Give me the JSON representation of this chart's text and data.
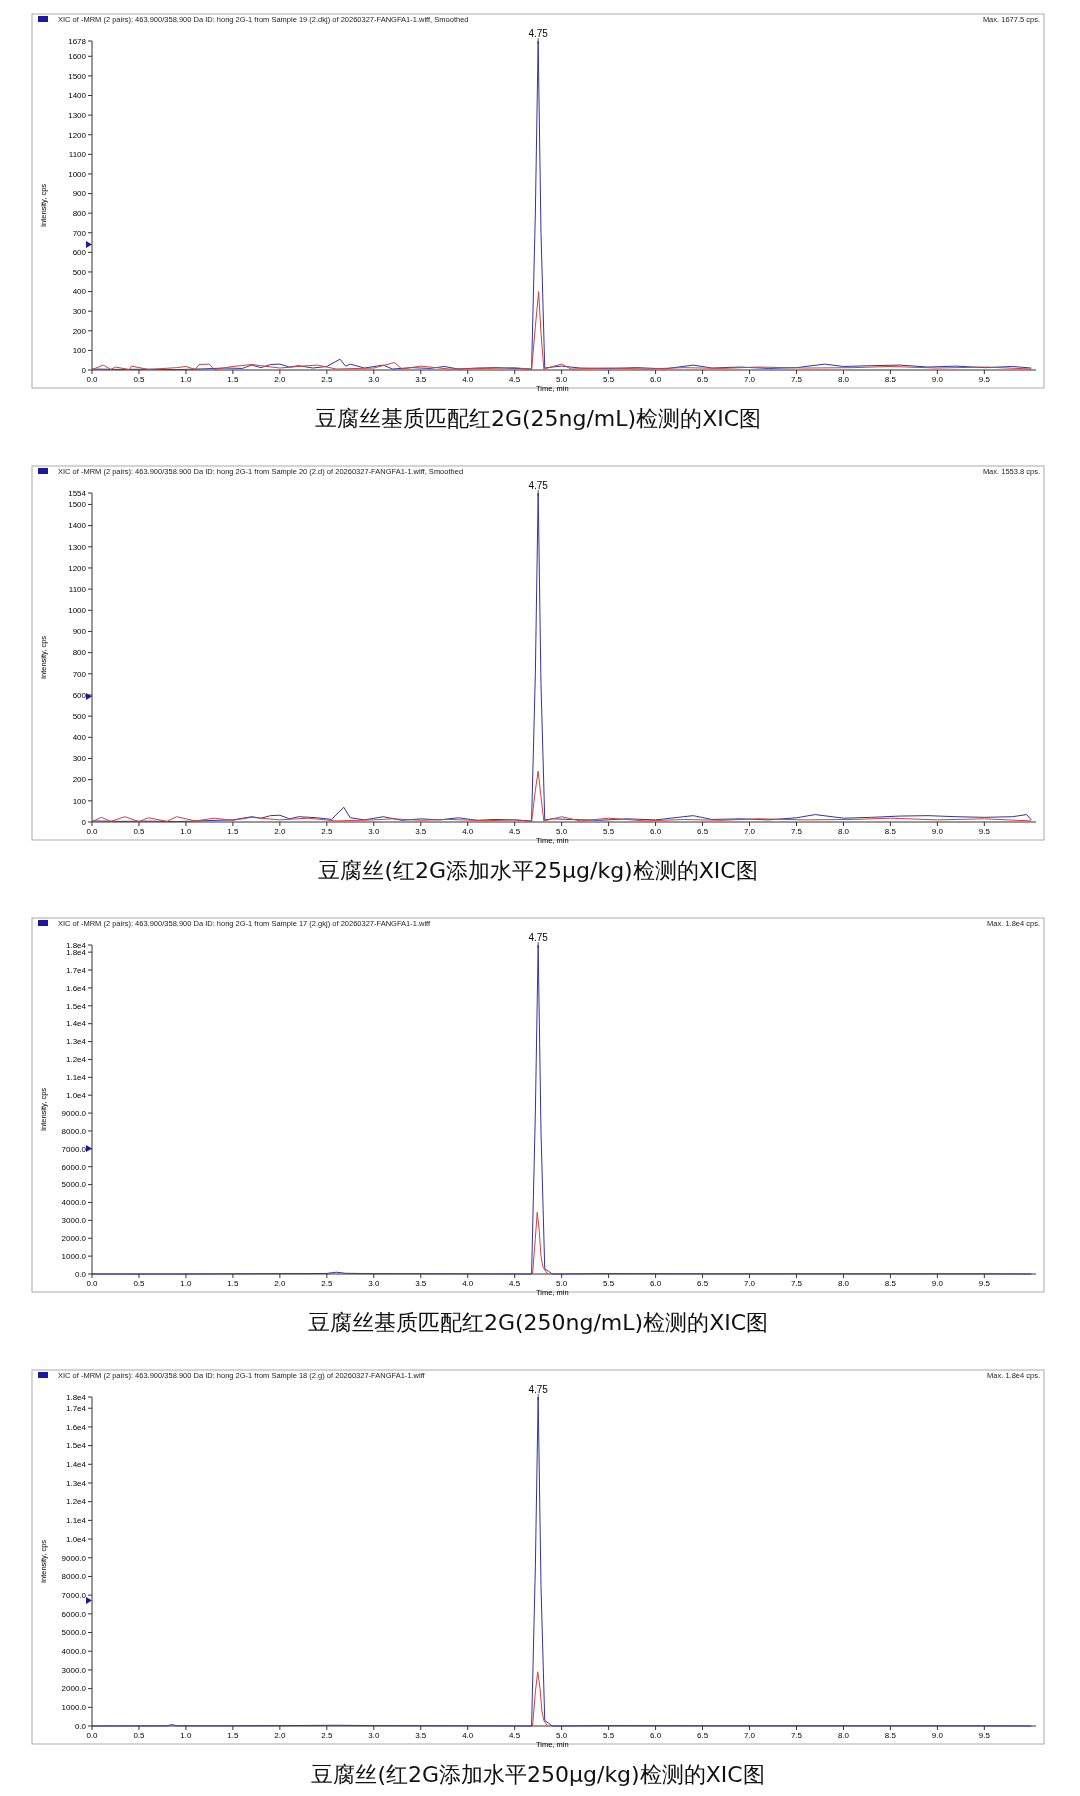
{
  "chart_data": [
    {
      "type": "line",
      "title": "豆腐丝基质匹配红2G(25ng/mL)检测的XIC图",
      "xlabel": "Time, min",
      "ylabel": "Intensity, cps",
      "annotations": [
        "XIC of -MRM (2 pairs): 463.900/358.900 Da ID: hong 2G-1 from Sample 19 (2.dkj) of 20260327-FANGFA1-1.wiff, Smoothed",
        "Max. 1677.5 cps.",
        "4.75"
      ],
      "xlim": [
        0,
        10.05
      ],
      "xticks": [
        {
          "value": 0,
          "label": "0.0"
        },
        0.5,
        {
          "value": 1,
          "label": "1.0"
        },
        1.5,
        {
          "value": 2,
          "label": "2.0"
        },
        2.5,
        {
          "value": 3,
          "label": "3.0"
        },
        3.5,
        {
          "value": 4,
          "label": "4.0"
        },
        4.5,
        {
          "value": 5,
          "label": "5.0"
        },
        5.5,
        {
          "value": 6,
          "label": "6.0"
        },
        6.5,
        {
          "value": 7,
          "label": "7.0"
        },
        7.5,
        {
          "value": 8,
          "label": "8.0"
        },
        8.5,
        {
          "value": 9,
          "label": "9.0"
        },
        9.5
      ],
      "ylim": [
        0,
        1678
      ],
      "yticks": [
        0,
        100,
        200,
        300,
        400,
        500,
        600,
        700,
        800,
        900,
        1000,
        1100,
        1200,
        1300,
        1400,
        1500,
        1600,
        1678
      ],
      "series": [
        {
          "color": "#3333a0",
          "x": [
            0,
            0.3,
            0.6,
            0.9,
            1.2,
            1.4,
            1.6,
            1.7,
            1.8,
            1.9,
            2.0,
            2.1,
            2.2,
            2.35,
            2.5,
            2.64,
            2.7,
            2.75,
            2.9,
            3.1,
            3.2,
            3.4,
            3.6,
            3.75,
            3.9,
            4.1,
            4.3,
            4.5,
            4.68,
            4.72,
            4.75,
            4.78,
            4.82,
            4.9,
            5.0,
            5.2,
            5.5,
            5.8,
            6.1,
            6.4,
            6.6,
            6.9,
            7.2,
            7.5,
            7.8,
            8.0,
            8.3,
            8.6,
            8.9,
            9.2,
            9.5,
            9.8,
            10.0
          ],
          "values": [
            5,
            3,
            4,
            2,
            6,
            10,
            8,
            25,
            12,
            28,
            30,
            15,
            22,
            10,
            18,
            55,
            20,
            30,
            10,
            25,
            5,
            12,
            8,
            18,
            5,
            10,
            12,
            8,
            5,
            800,
            1678,
            700,
            10,
            15,
            20,
            10,
            8,
            12,
            6,
            25,
            10,
            15,
            8,
            12,
            30,
            18,
            22,
            25,
            15,
            20,
            12,
            18,
            10
          ]
        },
        {
          "color": "#d04040",
          "x": [
            0,
            0.12,
            0.2,
            0.25,
            0.4,
            0.42,
            0.6,
            0.9,
            1.0,
            1.1,
            1.14,
            1.25,
            1.3,
            1.5,
            1.7,
            2.0,
            2.3,
            2.4,
            2.6,
            3.0,
            3.22,
            3.3,
            3.5,
            3.8,
            4.2,
            4.5,
            4.68,
            4.72,
            4.755,
            4.78,
            4.81,
            5.0,
            5.1,
            5.5,
            5.9,
            6.3,
            6.7,
            7.1,
            7.6,
            8.1,
            8.5,
            9.0,
            9.5,
            10.0
          ],
          "values": [
            2,
            25,
            3,
            15,
            2,
            20,
            3,
            12,
            18,
            3,
            28,
            30,
            2,
            18,
            28,
            10,
            22,
            25,
            5,
            10,
            38,
            5,
            20,
            5,
            8,
            12,
            3,
            220,
            400,
            190,
            5,
            30,
            5,
            10,
            5,
            12,
            8,
            15,
            10,
            12,
            18,
            10,
            15,
            5
          ]
        }
      ]
    },
    {
      "type": "line",
      "title": "豆腐丝(红2G添加水平25μg/kg)检测的XIC图",
      "xlabel": "Time, min",
      "ylabel": "Intensity, cps",
      "annotations": [
        "XIC of -MRM (2 pairs): 463.900/358.900 Da ID: hong 2G-1 from Sample 20 (2.d) of 20260327-FANGFA1-1.wiff, Smoothed",
        "Max. 1553.8 cps.",
        "4.75"
      ],
      "xlim": [
        0,
        10.05
      ],
      "xticks": [
        {
          "value": 0,
          "label": "0.0"
        },
        0.5,
        {
          "value": 1,
          "label": "1.0"
        },
        1.5,
        {
          "value": 2,
          "label": "2.0"
        },
        2.5,
        {
          "value": 3,
          "label": "3.0"
        },
        3.5,
        {
          "value": 4,
          "label": "4.0"
        },
        4.5,
        {
          "value": 5,
          "label": "5.0"
        },
        5.5,
        {
          "value": 6,
          "label": "6.0"
        },
        6.5,
        {
          "value": 7,
          "label": "7.0"
        },
        7.5,
        {
          "value": 8,
          "label": "8.0"
        },
        8.5,
        {
          "value": 9,
          "label": "9.0"
        },
        9.5
      ],
      "ylim": [
        0,
        1554
      ],
      "yticks": [
        0,
        100,
        200,
        300,
        400,
        500,
        600,
        700,
        800,
        900,
        1000,
        1100,
        1200,
        1300,
        1400,
        1500,
        1554
      ],
      "series": [
        {
          "color": "#3333a0",
          "x": [
            0,
            0.3,
            0.6,
            0.9,
            1.2,
            1.5,
            1.7,
            1.8,
            1.9,
            2.0,
            2.1,
            2.2,
            2.4,
            2.55,
            2.68,
            2.75,
            2.9,
            3.1,
            3.3,
            3.5,
            3.7,
            3.9,
            4.1,
            4.3,
            4.5,
            4.68,
            4.72,
            4.75,
            4.78,
            4.82,
            4.9,
            5.1,
            5.4,
            5.7,
            6.0,
            6.4,
            6.6,
            6.9,
            7.2,
            7.5,
            7.7,
            8.0,
            8.3,
            8.6,
            8.9,
            9.2,
            9.5,
            9.8,
            9.95,
            10.0
          ],
          "values": [
            5,
            3,
            4,
            2,
            6,
            10,
            25,
            18,
            30,
            32,
            15,
            25,
            20,
            12,
            70,
            20,
            10,
            25,
            8,
            15,
            10,
            20,
            8,
            12,
            10,
            5,
            700,
            1554,
            650,
            10,
            15,
            12,
            8,
            15,
            10,
            30,
            12,
            15,
            10,
            20,
            35,
            18,
            22,
            28,
            30,
            25,
            22,
            25,
            35,
            10
          ]
        },
        {
          "color": "#d04040",
          "x": [
            0,
            0.1,
            0.2,
            0.35,
            0.5,
            0.6,
            0.8,
            0.9,
            1.1,
            1.3,
            1.5,
            1.7,
            2.0,
            2.3,
            2.6,
            3.0,
            3.2,
            3.5,
            3.8,
            4.2,
            4.5,
            4.68,
            4.72,
            4.75,
            4.78,
            4.81,
            5.0,
            5.2,
            5.5,
            5.9,
            6.3,
            6.7,
            7.1,
            7.6,
            8.1,
            8.5,
            9.0,
            9.5,
            10.0
          ],
          "values": [
            2,
            22,
            3,
            25,
            2,
            20,
            3,
            25,
            5,
            18,
            8,
            22,
            10,
            18,
            5,
            10,
            15,
            8,
            12,
            6,
            10,
            3,
            150,
            240,
            120,
            5,
            25,
            5,
            18,
            5,
            12,
            8,
            15,
            10,
            12,
            18,
            10,
            15,
            5
          ]
        }
      ]
    },
    {
      "type": "line",
      "title": "豆腐丝基质匹配红2G(250ng/mL)检测的XIC图",
      "xlabel": "Time, min",
      "ylabel": "Intensity, cps",
      "annotations": [
        "XIC of -MRM (2 pairs): 463.900/358.900 Da ID: hong 2G-1 from Sample 17 (2.gkj) of 20260327-FANGFA1-1.wiff",
        "Max. 1.8e4 cps.",
        "4.75"
      ],
      "xlim": [
        0,
        10.05
      ],
      "xticks": [
        {
          "value": 0,
          "label": "0.0"
        },
        0.5,
        {
          "value": 1,
          "label": "1.0"
        },
        1.5,
        {
          "value": 2,
          "label": "2.0"
        },
        2.5,
        {
          "value": 3,
          "label": "3.0"
        },
        3.5,
        {
          "value": 4,
          "label": "4.0"
        },
        4.5,
        {
          "value": 5,
          "label": "5.0"
        },
        5.5,
        {
          "value": 6,
          "label": "6.0"
        },
        6.5,
        {
          "value": 7,
          "label": "7.0"
        },
        7.5,
        {
          "value": 8,
          "label": "8.0"
        },
        8.5,
        {
          "value": 9,
          "label": "9.0"
        },
        9.5
      ],
      "ylim": [
        0,
        18400
      ],
      "yticks": [
        {
          "value": 0,
          "label": "0.0"
        },
        {
          "value": 1000,
          "label": "1000.0"
        },
        {
          "value": 2000,
          "label": "2000.0"
        },
        {
          "value": 3000,
          "label": "3000.0"
        },
        {
          "value": 4000,
          "label": "4000.0"
        },
        {
          "value": 5000,
          "label": "5000.0"
        },
        {
          "value": 6000,
          "label": "6000.0"
        },
        {
          "value": 7000,
          "label": "7000.0"
        },
        {
          "value": 8000,
          "label": "8000.0"
        },
        {
          "value": 9000,
          "label": "9000.0"
        },
        {
          "value": 10000,
          "label": "1.0e4"
        },
        {
          "value": 11000,
          "label": "1.1e4"
        },
        {
          "value": 12000,
          "label": "1.2e4"
        },
        {
          "value": 13000,
          "label": "1.3e4"
        },
        {
          "value": 14000,
          "label": "1.4e4"
        },
        {
          "value": 15000,
          "label": "1.5e4"
        },
        {
          "value": 16000,
          "label": "1.6e4"
        },
        {
          "value": 17000,
          "label": "1.7e4"
        },
        {
          "value": 18000,
          "label": "1.8e4"
        },
        {
          "value": 18400,
          "label": "1.8e4"
        }
      ],
      "series": [
        {
          "color": "#3333a0",
          "x": [
            0,
            1.0,
            2.0,
            2.5,
            2.6,
            2.7,
            3.0,
            4.0,
            4.68,
            4.72,
            4.75,
            4.78,
            4.82,
            4.86,
            4.9,
            5.5,
            6.5,
            7.5,
            8.5,
            9.5,
            10.0
          ],
          "values": [
            0,
            0,
            20,
            30,
            100,
            40,
            20,
            10,
            0,
            9000,
            18400,
            8000,
            300,
            150,
            0,
            20,
            10,
            10,
            10,
            10,
            0
          ]
        },
        {
          "color": "#d04040",
          "x": [
            4.69,
            4.72,
            4.74,
            4.76,
            4.78,
            4.8,
            4.85
          ],
          "values": [
            0,
            2000,
            3450,
            2500,
            1000,
            400,
            0
          ]
        }
      ]
    },
    {
      "type": "line",
      "title": "豆腐丝(红2G添加水平250μg/kg)检测的XIC图",
      "xlabel": "Time, min",
      "ylabel": "Intensity, cps",
      "annotations": [
        "XIC of -MRM (2 pairs): 463.900/358.900 Da ID: hong 2G-1 from Sample 18 (2.g) of 20260327-FANGFA1-1.wiff",
        "Max. 1.8e4 cps.",
        "4.75"
      ],
      "xlim": [
        0,
        10.05
      ],
      "xticks": [
        {
          "value": 0,
          "label": "0.0"
        },
        0.5,
        {
          "value": 1,
          "label": "1.0"
        },
        1.5,
        {
          "value": 2,
          "label": "2.0"
        },
        2.5,
        {
          "value": 3,
          "label": "3.0"
        },
        3.5,
        {
          "value": 4,
          "label": "4.0"
        },
        4.5,
        {
          "value": 5,
          "label": "5.0"
        },
        5.5,
        {
          "value": 6,
          "label": "6.0"
        },
        6.5,
        {
          "value": 7,
          "label": "7.0"
        },
        7.5,
        {
          "value": 8,
          "label": "8.0"
        },
        8.5,
        {
          "value": 9,
          "label": "9.0"
        },
        9.5
      ],
      "ylim": [
        0,
        17600
      ],
      "yticks": [
        {
          "value": 0,
          "label": "0.0"
        },
        {
          "value": 1000,
          "label": "1000.0"
        },
        {
          "value": 2000,
          "label": "2000.0"
        },
        {
          "value": 3000,
          "label": "3000.0"
        },
        {
          "value": 4000,
          "label": "4000.0"
        },
        {
          "value": 5000,
          "label": "5000.0"
        },
        {
          "value": 6000,
          "label": "6000.0"
        },
        {
          "value": 7000,
          "label": "7000.0"
        },
        {
          "value": 8000,
          "label": "8000.0"
        },
        {
          "value": 9000,
          "label": "9000.0"
        },
        {
          "value": 10000,
          "label": "1.0e4"
        },
        {
          "value": 11000,
          "label": "1.1e4"
        },
        {
          "value": 12000,
          "label": "1.2e4"
        },
        {
          "value": 13000,
          "label": "1.3e4"
        },
        {
          "value": 14000,
          "label": "1.4e4"
        },
        {
          "value": 15000,
          "label": "1.5e4"
        },
        {
          "value": 16000,
          "label": "1.6e4"
        },
        {
          "value": 17000,
          "label": "1.7e4"
        },
        {
          "value": 17600,
          "label": "1.8e4"
        }
      ],
      "series": [
        {
          "color": "#3333a0",
          "x": [
            0,
            0.8,
            0.85,
            0.9,
            1.5,
            2.0,
            2.6,
            3.0,
            4.0,
            4.68,
            4.72,
            4.75,
            4.78,
            4.82,
            4.86,
            4.9,
            5.5,
            6.5,
            7.5,
            8.5,
            9.5,
            10.0
          ],
          "values": [
            0,
            10,
            80,
            10,
            10,
            20,
            40,
            20,
            10,
            0,
            8500,
            17600,
            7500,
            300,
            150,
            0,
            20,
            10,
            10,
            10,
            10,
            0
          ]
        },
        {
          "color": "#d04040",
          "x": [
            4.69,
            4.72,
            4.745,
            4.77,
            4.79,
            4.81,
            4.85
          ],
          "values": [
            0,
            1800,
            2900,
            2000,
            800,
            300,
            0
          ]
        }
      ]
    }
  ]
}
